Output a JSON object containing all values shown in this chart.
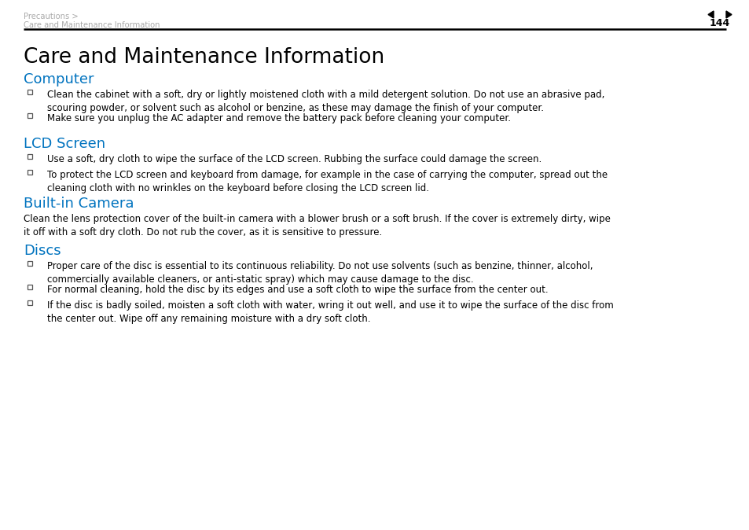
{
  "bg_color": "#ffffff",
  "breadcrumb_line1": "Precautions >",
  "breadcrumb_line2": "Care and Maintenance Information",
  "header_page_num": "144",
  "title": "Care and Maintenance Information",
  "blue_color": "#0073bf",
  "text_color": "#000000",
  "gray_color": "#aaaaaa",
  "sections": [
    {
      "heading": "Computer",
      "type": "bullets",
      "items": [
        "Clean the cabinet with a soft, dry or lightly moistened cloth with a mild detergent solution. Do not use an abrasive pad,\nscouring powder, or solvent such as alcohol or benzine, as these may damage the finish of your computer.",
        "Make sure you unplug the AC adapter and remove the battery pack before cleaning your computer."
      ]
    },
    {
      "heading": "LCD Screen",
      "type": "bullets",
      "items": [
        "Use a soft, dry cloth to wipe the surface of the LCD screen. Rubbing the surface could damage the screen.",
        "To protect the LCD screen and keyboard from damage, for example in the case of carrying the computer, spread out the\ncleaning cloth with no wrinkles on the keyboard before closing the LCD screen lid."
      ]
    },
    {
      "heading": "Built-in Camera",
      "type": "paragraph",
      "items": [
        "Clean the lens protection cover of the built-in camera with a blower brush or a soft brush. If the cover is extremely dirty, wipe\nit off with a soft dry cloth. Do not rub the cover, as it is sensitive to pressure."
      ]
    },
    {
      "heading": "Discs",
      "type": "bullets",
      "items": [
        "Proper care of the disc is essential to its continuous reliability. Do not use solvents (such as benzine, thinner, alcohol,\ncommercially available cleaners, or anti-static spray) which may cause damage to the disc.",
        "For normal cleaning, hold the disc by its edges and use a soft cloth to wipe the surface from the center out.",
        "If the disc is badly soiled, moisten a soft cloth with water, wring it out well, and use it to wipe the surface of the disc from\nthe center out. Wipe off any remaining moisture with a dry soft cloth."
      ]
    }
  ]
}
